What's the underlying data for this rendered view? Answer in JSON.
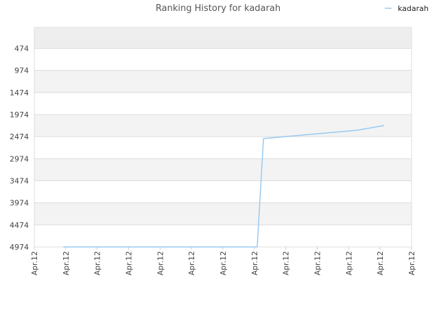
{
  "chart_data": {
    "type": "line",
    "title": "Ranking History for kadarah",
    "series": [
      {
        "name": "kadarah",
        "color": "#99c9f0",
        "x": [
          0.92,
          7.09,
          7.29,
          9,
          10.25,
          11.13
        ],
        "values": [
          4974,
          4974,
          2518,
          2409,
          2332,
          2223
        ]
      }
    ],
    "xlim": [
      0,
      12
    ],
    "xticks": [
      {
        "value": 0,
        "label": "Apr.12"
      },
      {
        "value": 1,
        "label": "Apr.12"
      },
      {
        "value": 2,
        "label": "Apr.12"
      },
      {
        "value": 3,
        "label": "Apr.12"
      },
      {
        "value": 4,
        "label": "Apr.12"
      },
      {
        "value": 5,
        "label": "Apr.12"
      },
      {
        "value": 6,
        "label": "Apr.12"
      },
      {
        "value": 7,
        "label": "Apr.12"
      },
      {
        "value": 8,
        "label": "Apr.12"
      },
      {
        "value": 9,
        "label": "Apr.12"
      },
      {
        "value": 10,
        "label": "Apr.12"
      },
      {
        "value": 11,
        "label": "Apr.12"
      },
      {
        "value": 12,
        "label": "Apr.12"
      }
    ],
    "ylim": [
      4974,
      0
    ],
    "yticks": [
      474,
      974,
      1474,
      1974,
      2474,
      2974,
      3474,
      3974,
      4474,
      4974
    ],
    "grid": true,
    "legend": "top-right"
  }
}
